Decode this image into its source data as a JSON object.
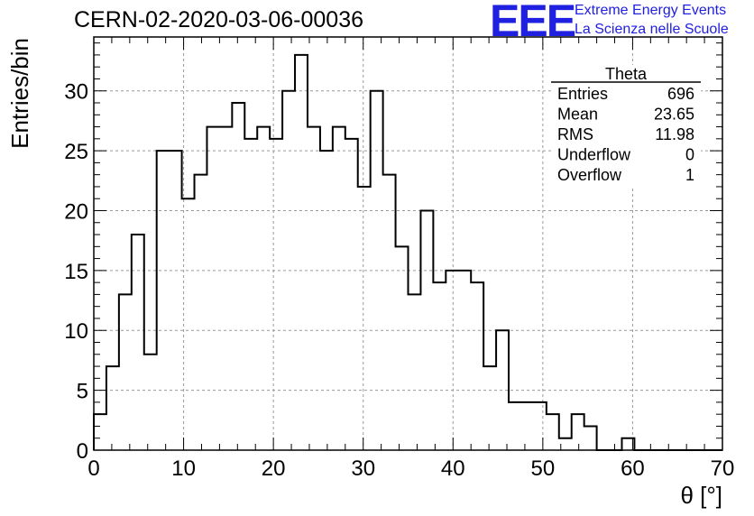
{
  "header": {
    "title": "CERN-02-2020-03-06-00036",
    "logo_text": "EEE",
    "org_line1": "Extreme Energy Events",
    "org_line2": "La Scienza nelle Scuole"
  },
  "stats": {
    "name": "Theta",
    "rows": [
      {
        "label": "Entries",
        "value": "696"
      },
      {
        "label": "Mean",
        "value": "23.65"
      },
      {
        "label": "RMS",
        "value": "11.98"
      },
      {
        "label": "Underflow",
        "value": "0"
      },
      {
        "label": "Overflow",
        "value": "1"
      }
    ]
  },
  "chart_data": {
    "type": "bar",
    "title": "CERN-02-2020-03-06-00036",
    "xlabel": "θ [°]",
    "ylabel": "Entries/bin",
    "xlim": [
      0,
      70
    ],
    "ylim": [
      0,
      34.5
    ],
    "grid": true,
    "bin_width": 1.4,
    "x_ticks": [
      0,
      10,
      20,
      30,
      40,
      50,
      60,
      70
    ],
    "y_ticks": [
      0,
      5,
      10,
      15,
      20,
      25,
      30
    ],
    "values": [
      3,
      7,
      13,
      18,
      8,
      25,
      25,
      21,
      23,
      27,
      27,
      29,
      26,
      27,
      26,
      30,
      33,
      27,
      25,
      27,
      26,
      22,
      30,
      23,
      17,
      13,
      20,
      14,
      15,
      15,
      14,
      7,
      10,
      4,
      4,
      4,
      3,
      1,
      3,
      2,
      0,
      0,
      1,
      0,
      0,
      0,
      0,
      0,
      0,
      0
    ]
  },
  "colors": {
    "logo": "#2020e0",
    "histogram": "#000000",
    "grid": "#9a9a9a"
  }
}
